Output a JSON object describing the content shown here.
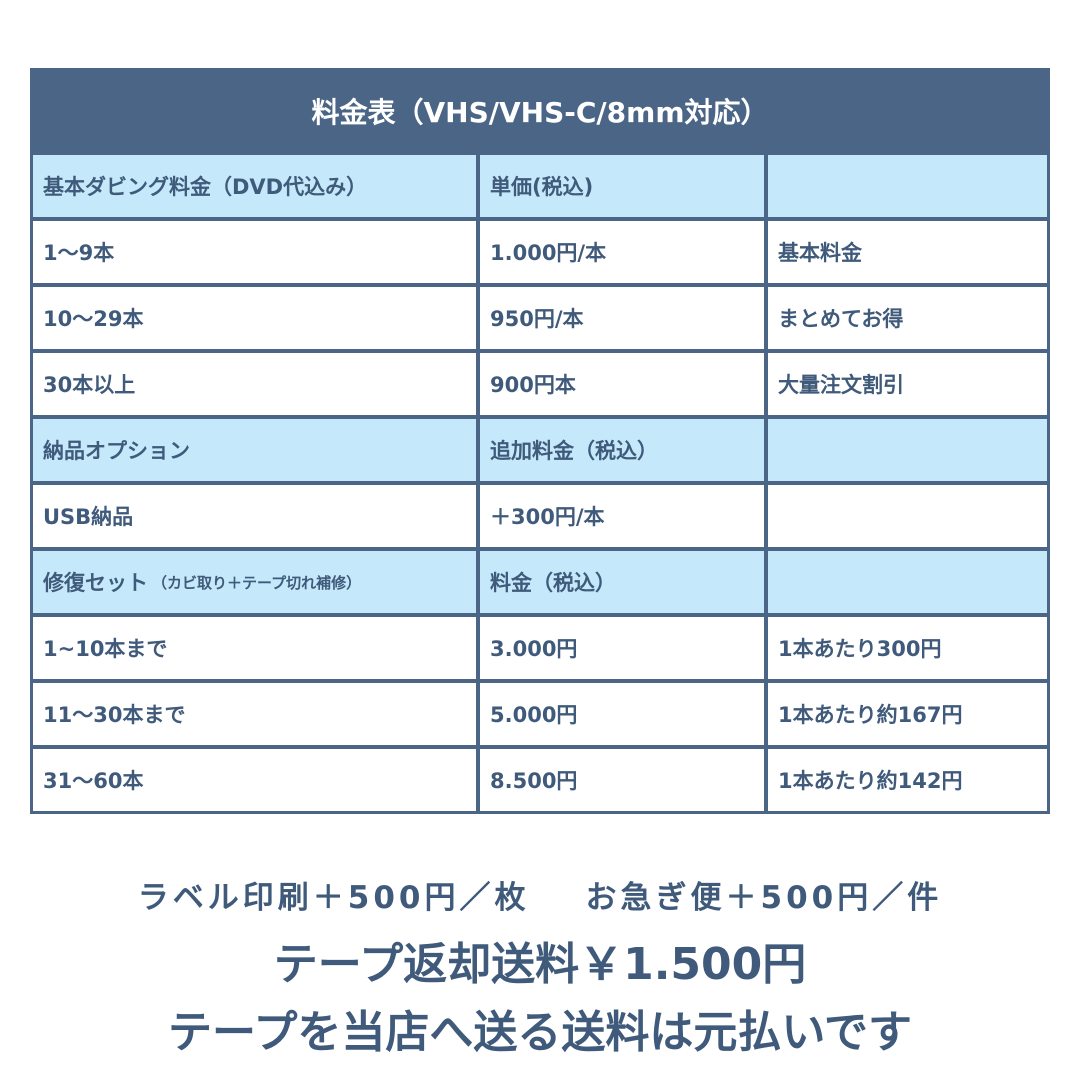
{
  "title": "料金表（VHS/VHS-C/8mm対応）",
  "rows": [
    {
      "head": true,
      "c1": "基本ダビング料金（DVD代込み）",
      "c1_small": "",
      "c2": "単価(税込)",
      "c3": ""
    },
    {
      "head": false,
      "c1": "1〜9本",
      "c1_small": "",
      "c2": "1.000円/本",
      "c3": "基本料金"
    },
    {
      "head": false,
      "c1": "10〜29本",
      "c1_small": "",
      "c2": "950円/本",
      "c3": "まとめてお得"
    },
    {
      "head": false,
      "c1": "30本以上",
      "c1_small": "",
      "c2": "900円本",
      "c3": "大量注文割引"
    },
    {
      "head": true,
      "c1": "納品オプション",
      "c1_small": "",
      "c2": "追加料金（税込）",
      "c3": ""
    },
    {
      "head": false,
      "c1": "USB納品",
      "c1_small": "",
      "c2": "＋300円/本",
      "c3": ""
    },
    {
      "head": true,
      "c1": "修復セット",
      "c1_small": "（カビ取り＋テープ切れ補修）",
      "c2": "料金（税込）",
      "c3": ""
    },
    {
      "head": false,
      "c1": "1~10本まで",
      "c1_small": "",
      "c2": "3.000円",
      "c3": "1本あたり300円"
    },
    {
      "head": false,
      "c1": "11〜30本まで",
      "c1_small": "",
      "c2": "5.000円",
      "c3": "1本あたり約167円"
    },
    {
      "head": false,
      "c1": "31〜60本",
      "c1_small": "",
      "c2": "8.500円",
      "c3": "1本あたり約142円"
    }
  ],
  "notes": {
    "label_print": "ラベル印刷＋500円／枚",
    "express": "お急ぎ便＋500円／件",
    "return_shipping": "テープ返却送料￥1.500円",
    "send_shipping": "テープを当店へ送る送料は元払いです"
  },
  "colors": {
    "header": "#4a6585",
    "subheader": "#c5e8fb",
    "text": "#3f5a7a"
  }
}
